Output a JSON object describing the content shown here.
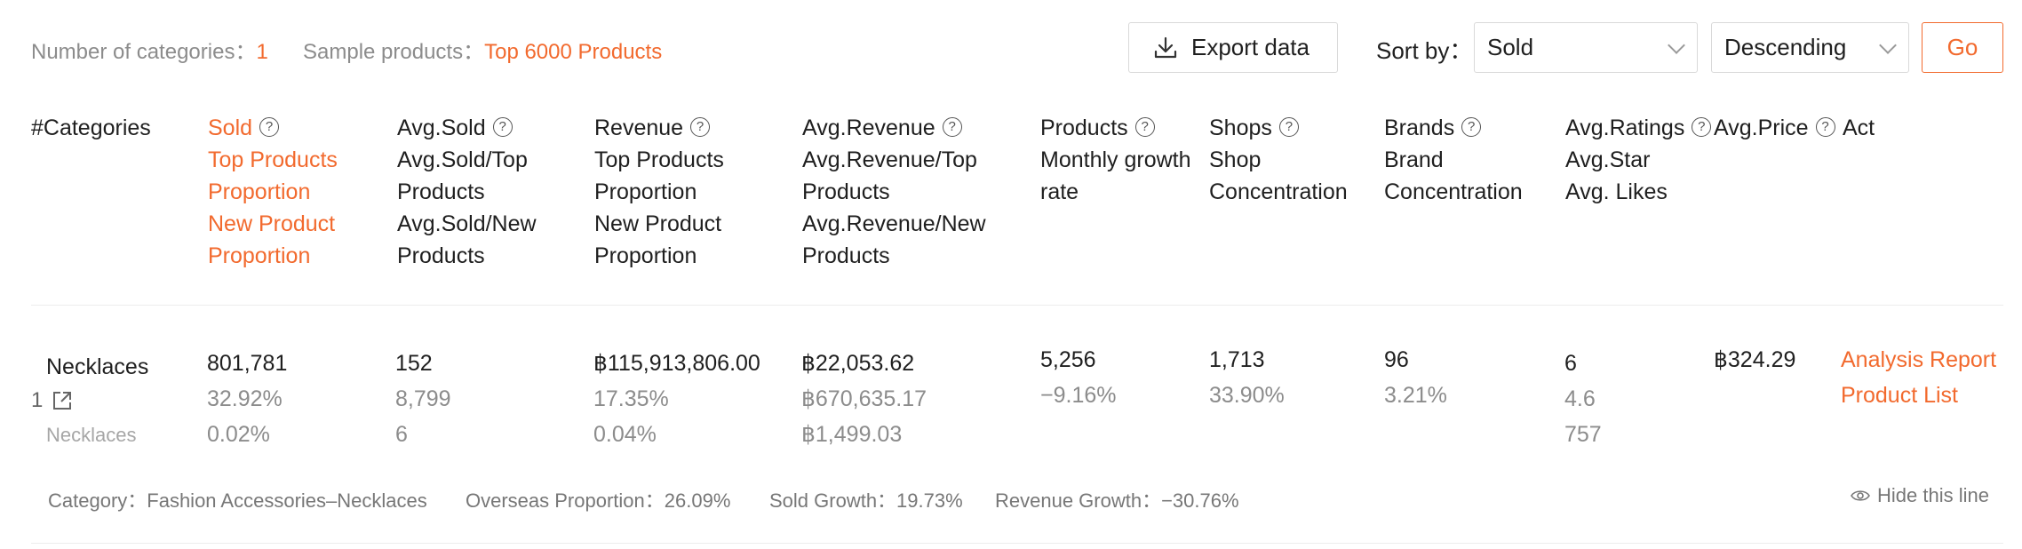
{
  "summary": {
    "categories_label": "Number of categories：",
    "categories_value": "1",
    "sample_label": "Sample products：",
    "sample_value": "Top 6000 Products"
  },
  "toolbar": {
    "export_label": "Export data",
    "sort_by_label": "Sort by：",
    "sort_field": "Sold",
    "sort_order": "Descending",
    "go_label": "Go"
  },
  "header": {
    "index": "#",
    "categories": "Categories",
    "sold": [
      "Sold",
      "Top Products",
      "Proportion",
      "New Product",
      "Proportion"
    ],
    "avg_sold": [
      "Avg.Sold",
      "Avg.Sold/Top",
      "Products",
      "Avg.Sold/New",
      "Products"
    ],
    "revenue": [
      "Revenue",
      "Top Products",
      "Proportion",
      "New Product",
      "Proportion"
    ],
    "avg_revenue": [
      "Avg.Revenue",
      "Avg.Revenue/Top",
      "Products",
      "Avg.Revenue/New",
      "Products"
    ],
    "products": [
      "Products",
      "Monthly growth",
      "rate"
    ],
    "shops": [
      "Shops",
      "Shop",
      "Concentration"
    ],
    "brands": [
      "Brands",
      "Brand",
      "Concentration"
    ],
    "ratings": [
      "Avg.Ratings",
      "Avg.Star",
      "Avg. Likes"
    ],
    "avg_price": "Avg.Price",
    "act": "Act"
  },
  "rows": [
    {
      "index": "1",
      "category": "Necklaces",
      "subcategory": "Necklaces",
      "sold": [
        "801,781",
        "32.92%",
        "0.02%"
      ],
      "avg_sold": [
        "152",
        "8,799",
        "6"
      ],
      "revenue": [
        "฿115,913,806.00",
        "17.35%",
        "0.04%"
      ],
      "avg_revenue": [
        "฿22,053.62",
        "฿670,635.17",
        "฿1,499.03"
      ],
      "products": [
        "5,256",
        "−9.16%"
      ],
      "shops": [
        "1,713",
        "33.90%"
      ],
      "brands": [
        "96",
        "3.21%"
      ],
      "ratings": [
        "6",
        "4.6",
        "757"
      ],
      "avg_price": "฿324.29",
      "actions": [
        "Analysis Report",
        "Product List"
      ],
      "footer": {
        "category": "Category：Fashion Accessories–Necklaces",
        "overseas": "Overseas Proportion：26.09%",
        "sold_growth": "Sold Growth：19.73%",
        "revenue_growth": "Revenue Growth：−30.76%",
        "hide": "Hide this line"
      }
    }
  ]
}
